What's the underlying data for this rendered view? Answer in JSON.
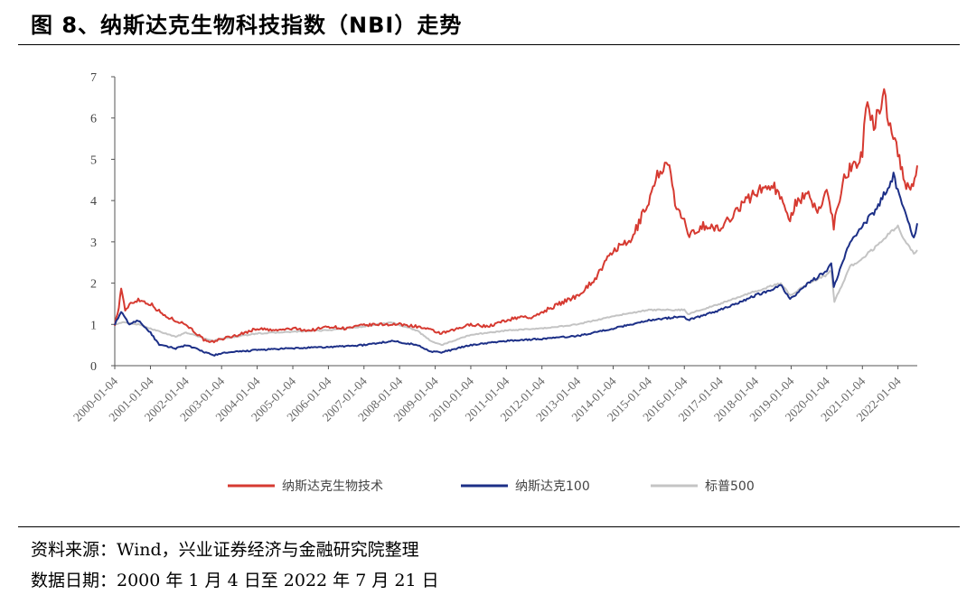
{
  "header": {
    "title": "图 8、纳斯达克生物科技指数（NBI）走势"
  },
  "footer": {
    "source": "资料来源：Wind，兴业证券经济与金融研究院整理",
    "date_range": "数据日期：2000 年 1 月 4 日至 2022 年 7 月 21 日"
  },
  "colors": {
    "nbi": "#d63a31",
    "nasdaq100": "#1c2f87",
    "sp500": "#c4c4c4"
  },
  "chart_data": {
    "type": "line",
    "title": "",
    "xlabel": "",
    "ylabel": "",
    "ylim": [
      0,
      7
    ],
    "yticks": [
      0,
      1,
      2,
      3,
      4,
      5,
      6,
      7
    ],
    "xlim": [
      "2000-01-04",
      "2022-07-21"
    ],
    "x_ticks": [
      "2000-01-04",
      "2001-01-04",
      "2002-01-04",
      "2003-01-04",
      "2004-01-04",
      "2005-01-04",
      "2006-01-04",
      "2007-01-04",
      "2008-01-04",
      "2009-01-04",
      "2010-01-04",
      "2011-01-04",
      "2012-01-04",
      "2013-01-04",
      "2014-01-04",
      "2015-01-04",
      "2016-01-04",
      "2017-01-04",
      "2018-01-04",
      "2019-01-04",
      "2020-01-04",
      "2021-01-04",
      "2022-01-04"
    ],
    "grid": false,
    "legend_position": "bottom",
    "series": [
      {
        "name": "纳斯达克生物技术",
        "color": "#d63a31",
        "x": [
          "2000-01-04",
          "2000-02-15",
          "2000-03-10",
          "2000-04-20",
          "2000-06-01",
          "2000-09-01",
          "2001-01-04",
          "2001-06-01",
          "2002-01-04",
          "2002-07-20",
          "2002-09-01",
          "2003-01-04",
          "2003-07-01",
          "2004-01-04",
          "2004-07-01",
          "2005-01-04",
          "2005-07-01",
          "2006-01-04",
          "2006-07-01",
          "2007-01-04",
          "2007-07-01",
          "2008-01-04",
          "2008-07-01",
          "2008-12-01",
          "2009-03-09",
          "2009-07-01",
          "2010-01-04",
          "2010-07-01",
          "2011-01-04",
          "2011-07-01",
          "2011-10-01",
          "2012-01-04",
          "2012-07-01",
          "2013-01-04",
          "2013-07-01",
          "2014-01-04",
          "2014-07-01",
          "2015-01-04",
          "2015-04-01",
          "2015-07-20",
          "2015-10-01",
          "2016-01-04",
          "2016-02-10",
          "2016-07-01",
          "2017-01-04",
          "2017-07-01",
          "2018-01-04",
          "2018-07-01",
          "2018-12-24",
          "2019-03-01",
          "2019-07-01",
          "2019-10-01",
          "2020-01-04",
          "2020-03-16",
          "2020-07-01",
          "2021-01-04",
          "2021-02-09",
          "2021-05-01",
          "2021-08-15",
          "2021-10-01",
          "2022-01-04",
          "2022-03-01",
          "2022-05-12",
          "2022-07-21"
        ],
        "values": [
          1.0,
          1.4,
          1.9,
          1.3,
          1.5,
          1.6,
          1.5,
          1.2,
          1.0,
          0.6,
          0.55,
          0.65,
          0.75,
          0.9,
          0.85,
          0.9,
          0.85,
          0.95,
          0.9,
          0.98,
          1.0,
          1.0,
          0.95,
          0.85,
          0.78,
          0.85,
          1.0,
          0.95,
          1.1,
          1.2,
          1.15,
          1.3,
          1.5,
          1.7,
          2.1,
          2.8,
          3.0,
          4.0,
          4.6,
          5.0,
          3.9,
          3.5,
          3.1,
          3.4,
          3.3,
          3.8,
          4.2,
          4.4,
          3.6,
          4.0,
          4.1,
          3.7,
          4.3,
          3.4,
          4.6,
          5.1,
          6.3,
          5.8,
          6.6,
          6.0,
          5.2,
          4.5,
          4.2,
          4.85
        ]
      },
      {
        "name": "纳斯达克100",
        "color": "#1c2f87",
        "x": [
          "2000-01-04",
          "2000-03-10",
          "2000-06-01",
          "2000-09-01",
          "2001-01-04",
          "2001-04-04",
          "2001-09-21",
          "2002-01-04",
          "2002-10-09",
          "2003-01-04",
          "2004-01-04",
          "2005-01-04",
          "2006-01-04",
          "2007-01-04",
          "2007-10-31",
          "2008-07-01",
          "2008-11-20",
          "2009-03-09",
          "2010-01-04",
          "2011-01-04",
          "2012-01-04",
          "2013-01-04",
          "2014-01-04",
          "2015-01-04",
          "2016-01-04",
          "2016-02-10",
          "2017-01-04",
          "2018-01-04",
          "2018-09-28",
          "2018-12-24",
          "2019-07-01",
          "2020-01-04",
          "2020-02-19",
          "2020-03-16",
          "2020-09-01",
          "2021-01-04",
          "2021-06-01",
          "2021-11-19",
          "2022-03-01",
          "2022-06-16",
          "2022-07-21"
        ],
        "values": [
          1.0,
          1.3,
          1.0,
          1.1,
          0.8,
          0.5,
          0.42,
          0.5,
          0.25,
          0.3,
          0.38,
          0.42,
          0.45,
          0.5,
          0.6,
          0.5,
          0.35,
          0.32,
          0.5,
          0.6,
          0.65,
          0.72,
          0.9,
          1.1,
          1.2,
          1.1,
          1.35,
          1.7,
          1.95,
          1.6,
          2.0,
          2.3,
          2.5,
          1.9,
          3.0,
          3.4,
          3.8,
          4.6,
          3.8,
          3.1,
          3.45
        ]
      },
      {
        "name": "标普500",
        "color": "#c4c4c4",
        "x": [
          "2000-01-04",
          "2000-03-24",
          "2000-09-01",
          "2001-01-04",
          "2001-09-21",
          "2002-01-04",
          "2002-10-09",
          "2003-01-04",
          "2004-01-04",
          "2005-01-04",
          "2006-01-04",
          "2007-01-04",
          "2007-10-09",
          "2008-07-01",
          "2008-11-20",
          "2009-03-09",
          "2010-01-04",
          "2011-01-04",
          "2012-01-04",
          "2013-01-04",
          "2014-01-04",
          "2015-01-04",
          "2016-01-04",
          "2016-02-10",
          "2017-01-04",
          "2018-01-04",
          "2018-09-20",
          "2018-12-24",
          "2019-07-01",
          "2020-01-04",
          "2020-02-19",
          "2020-03-23",
          "2020-09-01",
          "2021-01-04",
          "2021-06-01",
          "2022-01-04",
          "2022-03-01",
          "2022-06-16",
          "2022-07-21"
        ],
        "values": [
          1.0,
          1.05,
          1.0,
          0.9,
          0.7,
          0.8,
          0.6,
          0.65,
          0.78,
          0.82,
          0.86,
          0.95,
          1.05,
          0.85,
          0.6,
          0.5,
          0.75,
          0.85,
          0.9,
          1.0,
          1.2,
          1.35,
          1.35,
          1.25,
          1.5,
          1.8,
          2.0,
          1.7,
          2.0,
          2.2,
          2.3,
          1.55,
          2.4,
          2.6,
          2.9,
          3.4,
          3.1,
          2.7,
          2.8
        ]
      }
    ]
  }
}
